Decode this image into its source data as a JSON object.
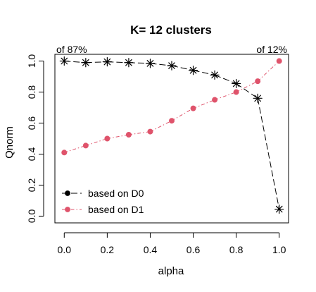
{
  "chart_data": {
    "type": "line",
    "title": "K= 12 clusters",
    "xlabel": "alpha",
    "ylabel": "Qnorm",
    "x": [
      0.0,
      0.1,
      0.2,
      0.3,
      0.4,
      0.5,
      0.6,
      0.7,
      0.8,
      0.9,
      1.0
    ],
    "xlim": [
      0.0,
      1.0
    ],
    "ylim": [
      0.0,
      1.0
    ],
    "xticks": [
      "0.0",
      "0.2",
      "0.4",
      "0.6",
      "0.8",
      "1.0"
    ],
    "yticks": [
      "0.0",
      "0.2",
      "0.4",
      "0.6",
      "0.8",
      "1.0"
    ],
    "grid": false,
    "legend_position": "bottom-left",
    "annotations": {
      "top_left": "of 87%",
      "top_right": "of 12%"
    },
    "series": [
      {
        "name": "based on D0",
        "color": "#000000",
        "marker": "asterisk",
        "line_style": "longdash",
        "legend_marker": "circle",
        "values": [
          1.0,
          0.99,
          0.995,
          0.99,
          0.985,
          0.97,
          0.94,
          0.91,
          0.855,
          0.76,
          0.045
        ]
      },
      {
        "name": "based on D1",
        "color": "#DF536B",
        "marker": "circle",
        "line_style": "dashdot",
        "legend_marker": "circle",
        "values": [
          0.41,
          0.455,
          0.5,
          0.525,
          0.545,
          0.615,
          0.695,
          0.75,
          0.8,
          0.87,
          1.0
        ]
      }
    ]
  }
}
